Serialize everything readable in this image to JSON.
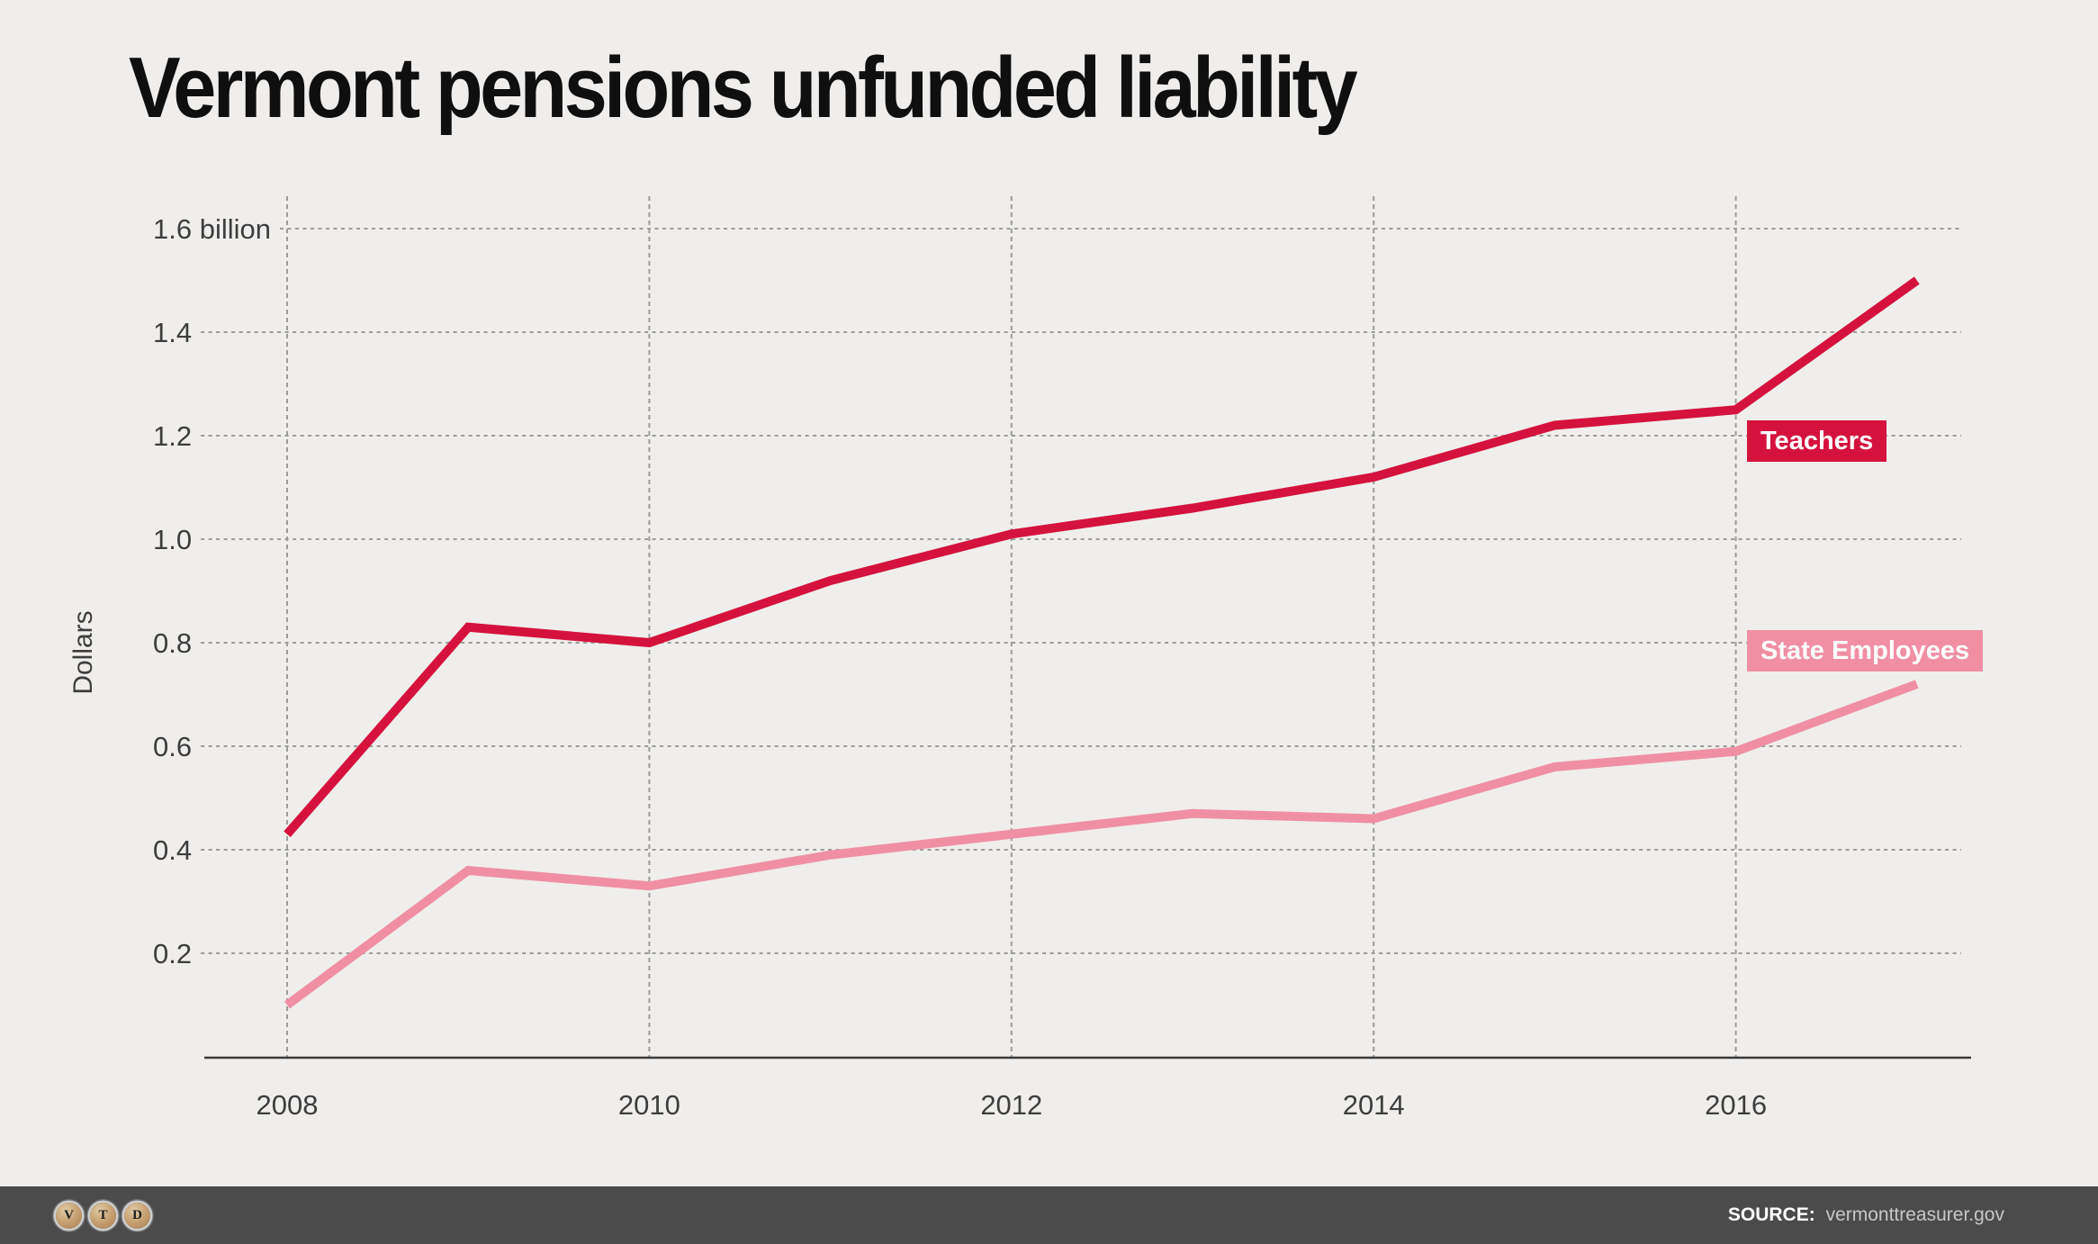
{
  "title": "Vermont pensions unfunded liability",
  "y_axis_label": "Dollars",
  "colors": {
    "background": "#efeeec",
    "title_text": "#0f0f0f",
    "teachers": "#d5123d",
    "state_employees": "#f08fa4",
    "gridline": "#9b9b9b",
    "axis": "#3b3b3b",
    "tick_text": "#3d3d3d",
    "footer_bar": "#4b4b4b"
  },
  "chart_data": {
    "type": "line",
    "title": "Vermont pensions unfunded liability",
    "ylabel": "Dollars",
    "xlabel": "",
    "x": [
      2008,
      2009,
      2010,
      2011,
      2012,
      2013,
      2014,
      2015,
      2016,
      2017
    ],
    "series": [
      {
        "name": "Teachers",
        "color": "#d5123d",
        "values": [
          0.43,
          0.83,
          0.8,
          0.92,
          1.01,
          1.06,
          1.12,
          1.22,
          1.25,
          1.5
        ]
      },
      {
        "name": "State Employees",
        "color": "#f08fa4",
        "values": [
          0.1,
          0.36,
          0.33,
          0.39,
          0.43,
          0.47,
          0.46,
          0.56,
          0.59,
          0.72
        ]
      }
    ],
    "units": "billions of dollars",
    "ylim": [
      0,
      1.6
    ],
    "ytick_values": [
      0.2,
      0.4,
      0.6,
      0.8,
      1.0,
      1.2,
      1.4,
      1.6
    ],
    "ytick_labels": [
      "0.2",
      "0.4",
      "0.6",
      "0.8",
      "1.0",
      "1.2",
      "1.4",
      "1.6 billion"
    ],
    "xtick_values": [
      2008,
      2010,
      2012,
      2014,
      2016
    ],
    "xtick_labels": [
      "2008",
      "2010",
      "2012",
      "2014",
      "2016"
    ],
    "grid": "dashed horizontal lines at each y tick (starting after inline labels) and dashed vertical lines at even years",
    "legend_position": "inline chips at right of lines"
  },
  "footer": {
    "logo_keys": [
      "V",
      "T",
      "D"
    ],
    "source_label": "SOURCE:",
    "source_value": "vermonttreasurer.gov"
  }
}
